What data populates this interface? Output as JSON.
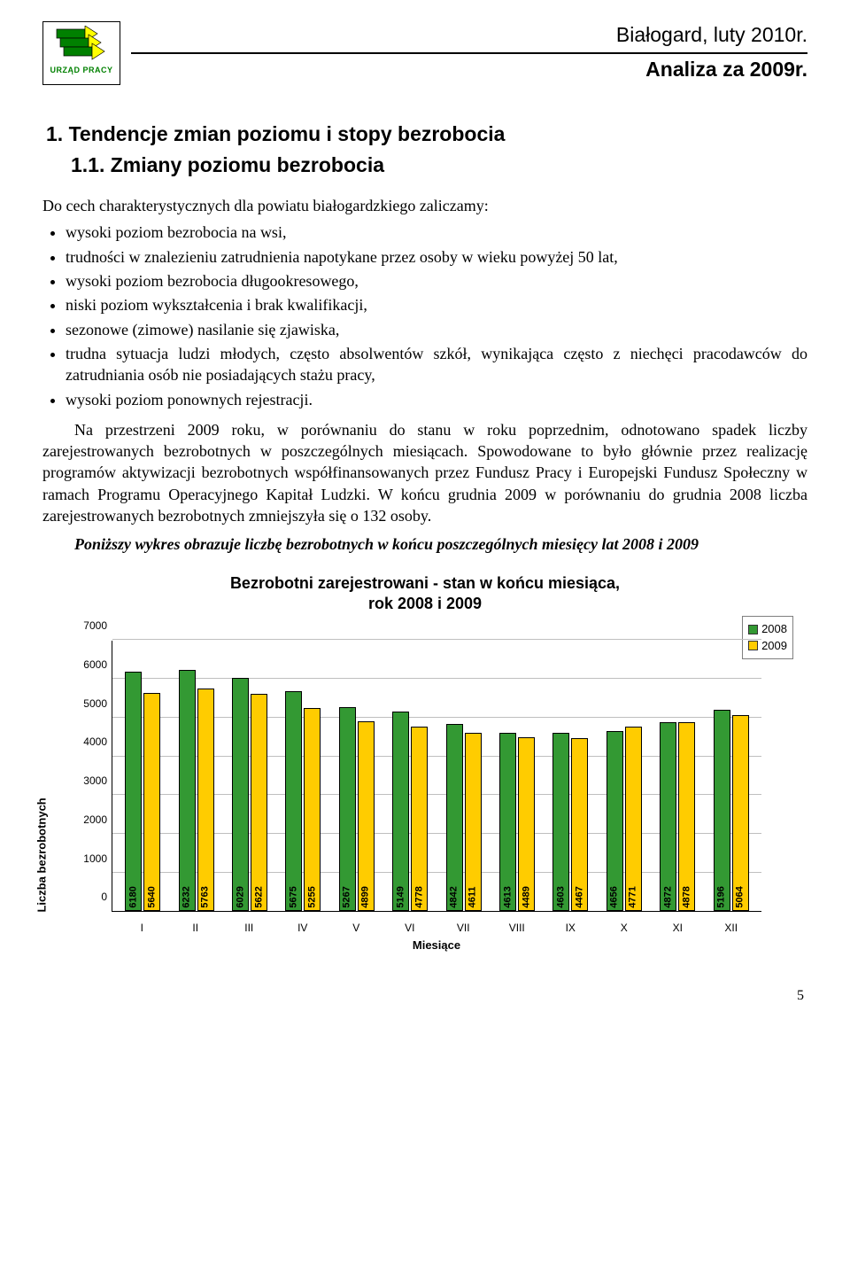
{
  "header": {
    "place_date": "Białogard, luty 2010r.",
    "subtitle": "Analiza za 2009r.",
    "logo_caption": "URZĄD PRACY",
    "logo": {
      "body_color": "#008000",
      "tip_color": "#ffff00",
      "border_color": "#000000"
    }
  },
  "section": {
    "number_title": "1. Tendencje zmian poziomu i stopy bezrobocia",
    "subnumber_title": "1.1. Zmiany poziomu bezrobocia"
  },
  "intro": "Do cech charakterystycznych dla powiatu białogardzkiego zaliczamy:",
  "bullets": [
    "wysoki poziom bezrobocia na wsi,",
    "trudności w znalezieniu zatrudnienia napotykane przez osoby w wieku powyżej 50 lat,",
    "wysoki poziom bezrobocia długookresowego,",
    "niski poziom wykształcenia i brak kwalifikacji,",
    "sezonowe (zimowe) nasilanie się zjawiska,",
    "trudna sytuacja ludzi młodych, często absolwentów szkół, wynikająca często z niechęci pracodawców do zatrudniania osób nie posiadających stażu pracy,",
    "wysoki poziom ponownych rejestracji."
  ],
  "paragraphs": [
    "Na przestrzeni 2009 roku, w porównaniu do stanu w roku poprzednim, odnotowano spadek liczby zarejestrowanych bezrobotnych w poszczególnych miesiącach. Spowodowane to było głównie przez realizację programów aktywizacji bezrobotnych współfinansowanych przez Fundusz Pracy i Europejski Fundusz Społeczny w ramach Programu Operacyjnego Kapitał Ludzki. W końcu grudnia 2009 w porównaniu do grudnia 2008 liczba zarejestrowanych bezrobotnych zmniejszyła się o 132 osoby."
  ],
  "italic_para": "Poniższy wykres obrazuje liczbę bezrobotnych w końcu poszczególnych miesięcy lat 2008 i 2009",
  "chart": {
    "type": "bar",
    "title_line1": "Bezrobotni zarejestrowani - stan w końcu miesiąca,",
    "title_line2": "rok 2008 i 2009",
    "x_label": "Miesiące",
    "y_label": "Liczba bezrobotnych",
    "categories": [
      "I",
      "II",
      "III",
      "IV",
      "V",
      "VI",
      "VII",
      "VIII",
      "IX",
      "X",
      "XI",
      "XII"
    ],
    "series": [
      {
        "name": "2008",
        "color": "#339933",
        "values": [
          6180,
          6232,
          6029,
          5675,
          5267,
          5149,
          4842,
          4613,
          4603,
          4656,
          4872,
          5196
        ]
      },
      {
        "name": "2009",
        "color": "#ffcc00",
        "values": [
          5640,
          5763,
          5622,
          5255,
          4899,
          4778,
          4611,
          4489,
          4467,
          4771,
          4878,
          5064
        ]
      }
    ],
    "ylim": [
      0,
      7000
    ],
    "yticks": [
      0,
      1000,
      2000,
      3000,
      4000,
      5000,
      6000,
      7000
    ],
    "background_color": "#ffffff",
    "grid_color": "#bfbfbf",
    "bar_border_color": "#000000",
    "legend_border": "#7f7f7f",
    "font_family": "Arial"
  },
  "page_number": "5"
}
